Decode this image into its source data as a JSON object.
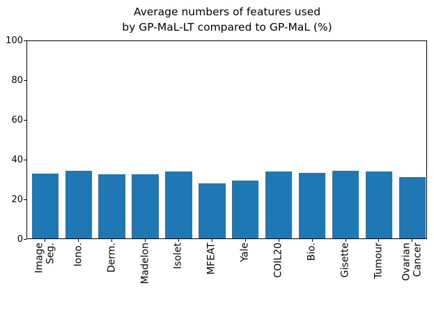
{
  "title": {
    "line1": "Average numbers of features used",
    "line2": "by GP-MaL-LT compared to GP-MaL (%)"
  },
  "chart_data": {
    "type": "bar",
    "title": "Average numbers of features used\nby GP-MaL-LT compared to GP-MaL (%)",
    "xlabel": "",
    "ylabel": "",
    "categories": [
      "Image Seg.",
      "Iono.",
      "Derm.",
      "Madelon",
      "Isolet",
      "MFEAT",
      "Yale",
      "COIL20",
      "Bio.",
      "Gisette",
      "Tumour",
      "Ovarian Cancer"
    ],
    "x_tick_labels": [
      "Image\nSeg.",
      "Iono.",
      "Derm.",
      "Madelon",
      "Isolet",
      "MFEAT",
      "Yale",
      "COIL20",
      "Bio.",
      "Gisette",
      "Tumour",
      "Ovarian\nCancer"
    ],
    "values": [
      33.1,
      34.3,
      32.8,
      32.8,
      34.0,
      28.2,
      29.3,
      33.9,
      33.3,
      34.5,
      33.9,
      31.2
    ],
    "ylim": [
      0,
      100
    ],
    "yticks": [
      0,
      20,
      40,
      60,
      80,
      100
    ],
    "bar_color": "#1f77b4",
    "axis_color": "#000000",
    "grid": false,
    "legend": null,
    "x_tick_label_rotation_deg": 90
  }
}
